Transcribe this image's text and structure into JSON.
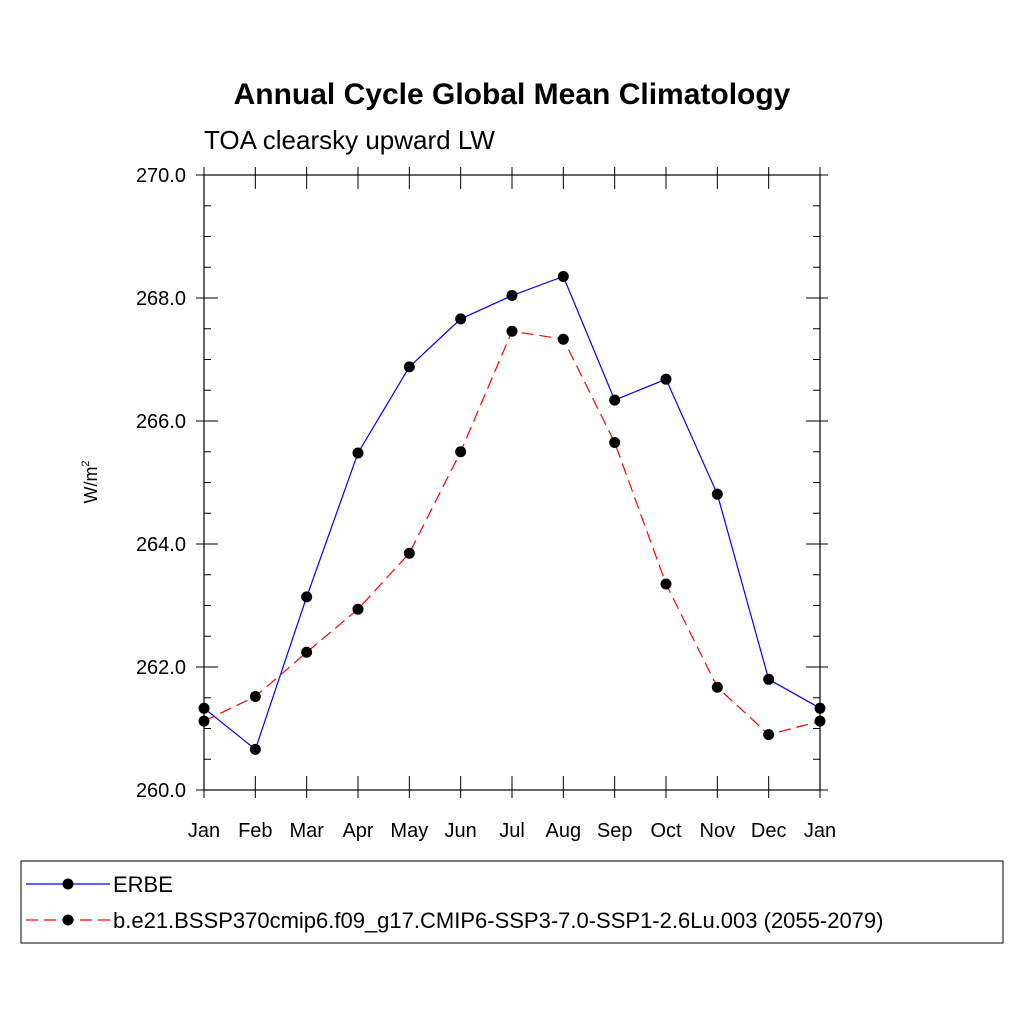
{
  "chart_data": {
    "type": "line",
    "title": "Annual Cycle Global Mean Climatology",
    "subtitle": "TOA clearsky upward LW",
    "ylabel_base": "W/m",
    "ylabel_sup": "2",
    "xlabel": "",
    "categories": [
      "Jan",
      "Feb",
      "Mar",
      "Apr",
      "May",
      "Jun",
      "Jul",
      "Aug",
      "Sep",
      "Oct",
      "Nov",
      "Dec",
      "Jan"
    ],
    "ylim": [
      260.0,
      270.0
    ],
    "yticks": [
      "260.0",
      "262.0",
      "264.0",
      "266.0",
      "268.0",
      "270.0"
    ],
    "series": [
      {
        "name": "ERBE",
        "color": "#0000ff",
        "dash": "solid",
        "marker": "filled-circle",
        "values": [
          261.33,
          260.66,
          263.14,
          265.48,
          266.88,
          267.66,
          268.04,
          268.35,
          266.34,
          266.68,
          264.81,
          261.8,
          261.33
        ]
      },
      {
        "name": "b.e21.BSSP370cmip6.f09_g17.CMIP6-SSP3-7.0-SSP1-2.6Lu.003 (2055-2079)",
        "color": "#ff0000",
        "dash": "dashed",
        "marker": "filled-circle",
        "values": [
          261.12,
          261.52,
          262.24,
          262.94,
          263.85,
          265.5,
          267.46,
          267.33,
          265.65,
          263.35,
          261.67,
          260.9,
          261.12
        ]
      }
    ],
    "legend_position": "bottom",
    "grid": false
  }
}
